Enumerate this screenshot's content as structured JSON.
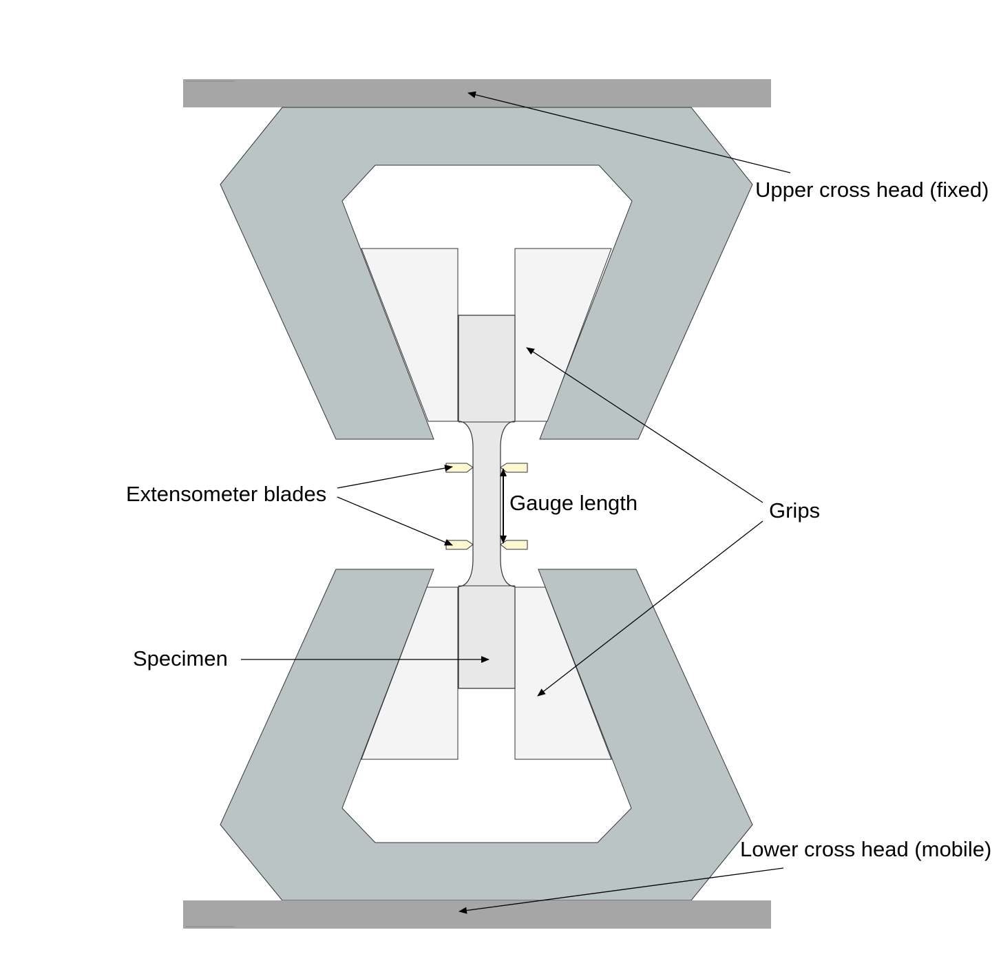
{
  "labels": {
    "upper_cross_head": "Upper cross head (fixed)",
    "lower_cross_head": "Lower cross head (mobile)",
    "grips": "Grips",
    "extensometer_blades": "Extensometer blades",
    "gauge_length": "Gauge length",
    "specimen": "Specimen"
  },
  "colors": {
    "cross_head_bar": "#a6a6a6",
    "frame": "#bac4c4",
    "grip_block": "#f4f4f4",
    "specimen": "#e8e8e8",
    "blade": "#fbf7d0",
    "line": "#000000"
  }
}
